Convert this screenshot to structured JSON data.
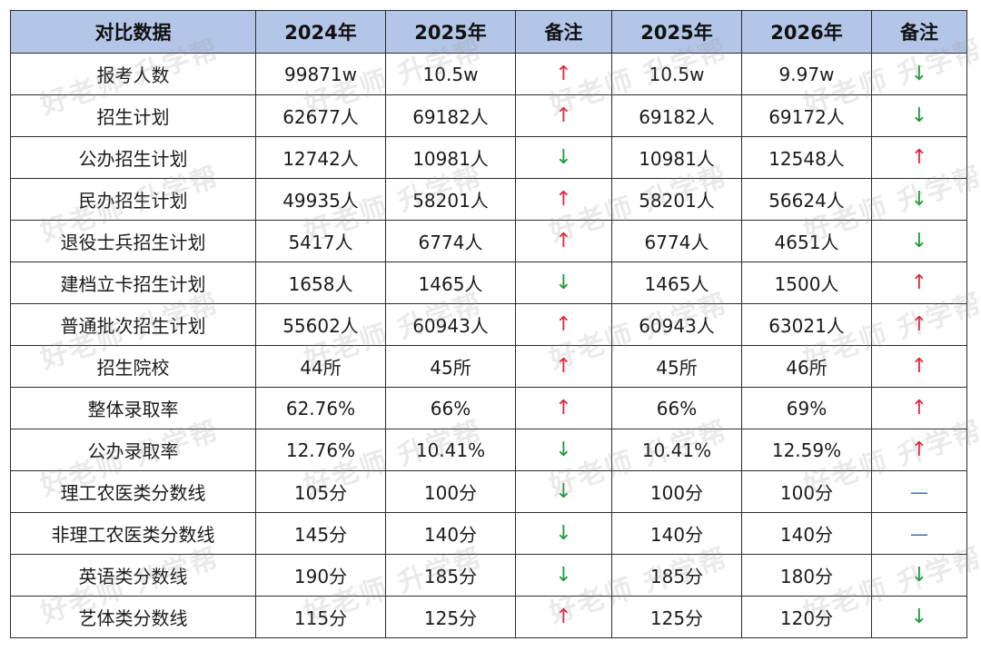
{
  "table": {
    "headers": [
      "对比数据",
      "2024年",
      "2025年",
      "备注",
      "2025年",
      "2026年",
      "备注"
    ],
    "rows": [
      {
        "label": "报考人数",
        "y2024": "99871w",
        "y2025a": "10.5w",
        "note1": "up",
        "y2025b": "10.5w",
        "y2026": "9.97w",
        "note2": "down"
      },
      {
        "label": "招生计划",
        "y2024": "62677人",
        "y2025a": "69182人",
        "note1": "up",
        "y2025b": "69182人",
        "y2026": "69172人",
        "note2": "down"
      },
      {
        "label": "公办招生计划",
        "y2024": "12742人",
        "y2025a": "10981人",
        "note1": "down",
        "y2025b": "10981人",
        "y2026": "12548人",
        "note2": "up"
      },
      {
        "label": "民办招生计划",
        "y2024": "49935人",
        "y2025a": "58201人",
        "note1": "up",
        "y2025b": "58201人",
        "y2026": "56624人",
        "note2": "down"
      },
      {
        "label": "退役士兵招生计划",
        "y2024": "5417人",
        "y2025a": "6774人",
        "note1": "up",
        "y2025b": "6774人",
        "y2026": "4651人",
        "note2": "down"
      },
      {
        "label": "建档立卡招生计划",
        "y2024": "1658人",
        "y2025a": "1465人",
        "note1": "down",
        "y2025b": "1465人",
        "y2026": "1500人",
        "note2": "up"
      },
      {
        "label": "普通批次招生计划",
        "y2024": "55602人",
        "y2025a": "60943人",
        "note1": "up",
        "y2025b": "60943人",
        "y2026": "63021人",
        "note2": "up"
      },
      {
        "label": "招生院校",
        "y2024": "44所",
        "y2025a": "45所",
        "note1": "up",
        "y2025b": "45所",
        "y2026": "46所",
        "note2": "up"
      },
      {
        "label": "整体录取率",
        "y2024": "62.76%",
        "y2025a": "66%",
        "note1": "up",
        "y2025b": "66%",
        "y2026": "69%",
        "note2": "up"
      },
      {
        "label": "公办录取率",
        "y2024": "12.76%",
        "y2025a": "10.41%",
        "note1": "down",
        "y2025b": "10.41%",
        "y2026": "12.59%",
        "note2": "up"
      },
      {
        "label": "理工农医类分数线",
        "y2024": "105分",
        "y2025a": "100分",
        "note1": "down",
        "y2025b": "100分",
        "y2026": "100分",
        "note2": "flat"
      },
      {
        "label": "非理工农医类分数线",
        "y2024": "145分",
        "y2025a": "140分",
        "note1": "down",
        "y2025b": "140分",
        "y2026": "140分",
        "note2": "flat"
      },
      {
        "label": "英语类分数线",
        "y2024": "190分",
        "y2025a": "185分",
        "note1": "down",
        "y2025b": "185分",
        "y2026": "180分",
        "note2": "down"
      },
      {
        "label": "艺体类分数线",
        "y2024": "115分",
        "y2025a": "125分",
        "note1": "up",
        "y2025b": "125分",
        "y2026": "120分",
        "note2": "down"
      }
    ]
  },
  "symbols": {
    "up": "↑",
    "down": "↓",
    "flat": "—"
  },
  "colors": {
    "header_bg": "#b4c6e7",
    "up": "#e0283c",
    "down": "#1f9a3a",
    "flat": "#2e74b5"
  },
  "watermark": "好老师 升学帮"
}
